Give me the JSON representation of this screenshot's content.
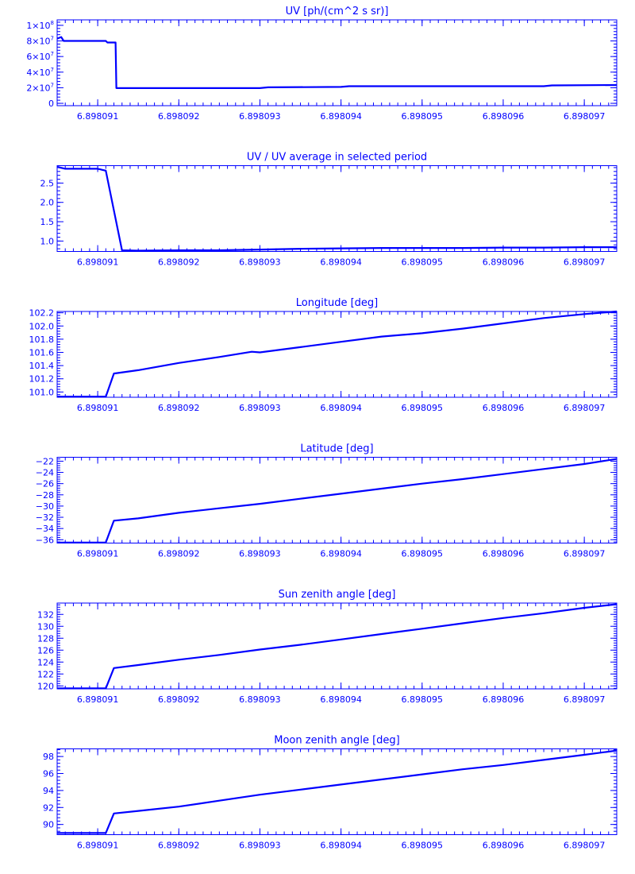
{
  "color": "#0000ff",
  "chart_data": [
    {
      "type": "line",
      "title": "UV [ph/(cm^2 s sr)]",
      "xlabel": "",
      "ylabel": "",
      "x_ticks": [
        "6.898091",
        "6.898092",
        "6.898093",
        "6.898094",
        "6.898095",
        "6.898096",
        "6.898097"
      ],
      "y_ticks": [
        {
          "value": 0,
          "label": "0"
        },
        {
          "value": 20000000,
          "label": "2×10",
          "exp": "7"
        },
        {
          "value": 40000000,
          "label": "4×10",
          "exp": "7"
        },
        {
          "value": 60000000,
          "label": "6×10",
          "exp": "7"
        },
        {
          "value": 80000000,
          "label": "8×10",
          "exp": "7"
        },
        {
          "value": 100000000,
          "label": "1×10",
          "exp": "8"
        }
      ],
      "xlim": [
        6.8980905,
        6.8980974
      ],
      "ylim": [
        -3000000,
        107000000
      ],
      "grid": false,
      "series": [
        {
          "x": [
            6.8980905,
            6.89809055,
            6.89809058,
            6.8980911,
            6.89809112,
            6.89809122,
            6.89809123,
            6.898093,
            6.8980931,
            6.898094,
            6.8980941,
            6.8980965,
            6.8980966,
            6.8980974
          ],
          "y": [
            83000000,
            85000000,
            80000000,
            80000000,
            78000000,
            78000000,
            19500000,
            19500000,
            20500000,
            21000000,
            22000000,
            22000000,
            23000000,
            23500000
          ]
        }
      ]
    },
    {
      "type": "line",
      "title": "UV / UV average in selected period",
      "xlabel": "",
      "ylabel": "",
      "x_ticks": [
        "6.898091",
        "6.898092",
        "6.898093",
        "6.898094",
        "6.898095",
        "6.898096",
        "6.898097"
      ],
      "y_ticks": [
        {
          "value": 1.0,
          "label": "1.0"
        },
        {
          "value": 1.5,
          "label": "1.5"
        },
        {
          "value": 2.0,
          "label": "2.0"
        },
        {
          "value": 2.5,
          "label": "2.5"
        }
      ],
      "xlim": [
        6.8980905,
        6.8980974
      ],
      "ylim": [
        0.73,
        2.95
      ],
      "grid": false,
      "series": [
        {
          "x": [
            6.8980905,
            6.8980906,
            6.898091,
            6.8980911,
            6.8980913,
            6.8980915,
            6.898092,
            6.8980925,
            6.898093,
            6.8980935,
            6.898094,
            6.8980945,
            6.898095,
            6.8980955,
            6.898096,
            6.8980965,
            6.898097,
            6.8980974
          ],
          "y": [
            2.92,
            2.87,
            2.87,
            2.82,
            0.76,
            0.75,
            0.76,
            0.76,
            0.78,
            0.8,
            0.81,
            0.82,
            0.82,
            0.82,
            0.83,
            0.83,
            0.84,
            0.84
          ]
        }
      ]
    },
    {
      "type": "line",
      "title": "Longitude [deg]",
      "xlabel": "",
      "ylabel": "",
      "x_ticks": [
        "6.898091",
        "6.898092",
        "6.898093",
        "6.898094",
        "6.898095",
        "6.898096",
        "6.898097"
      ],
      "y_ticks": [
        {
          "value": 101.0,
          "label": "101.0"
        },
        {
          "value": 101.2,
          "label": "101.2"
        },
        {
          "value": 101.4,
          "label": "101.4"
        },
        {
          "value": 101.6,
          "label": "101.6"
        },
        {
          "value": 101.8,
          "label": "101.8"
        },
        {
          "value": 102.0,
          "label": "102.0"
        },
        {
          "value": 102.2,
          "label": "102.2"
        }
      ],
      "xlim": [
        6.8980905,
        6.8980974
      ],
      "ylim": [
        100.92,
        102.22
      ],
      "grid": false,
      "series": [
        {
          "x": [
            6.8980905,
            6.8980911,
            6.8980912,
            6.8980915,
            6.898092,
            6.8980925,
            6.8980929,
            6.898093,
            6.8980935,
            6.898094,
            6.8980945,
            6.898095,
            6.8980955,
            6.898096,
            6.8980965,
            6.898097,
            6.8980974
          ],
          "y": [
            100.93,
            100.93,
            101.28,
            101.33,
            101.44,
            101.53,
            101.61,
            101.6,
            101.68,
            101.76,
            101.84,
            101.89,
            101.96,
            102.04,
            102.12,
            102.18,
            102.22
          ]
        }
      ]
    },
    {
      "type": "line",
      "title": "Latitude [deg]",
      "xlabel": "",
      "ylabel": "",
      "x_ticks": [
        "6.898091",
        "6.898092",
        "6.898093",
        "6.898094",
        "6.898095",
        "6.898096",
        "6.898097"
      ],
      "y_ticks": [
        {
          "value": -36,
          "label": "−36"
        },
        {
          "value": -34,
          "label": "−34"
        },
        {
          "value": -32,
          "label": "−32"
        },
        {
          "value": -30,
          "label": "−30"
        },
        {
          "value": -28,
          "label": "−28"
        },
        {
          "value": -26,
          "label": "−26"
        },
        {
          "value": -24,
          "label": "−24"
        },
        {
          "value": -22,
          "label": "−22"
        }
      ],
      "xlim": [
        6.8980905,
        6.8980974
      ],
      "ylim": [
        -36.6,
        -21.3
      ],
      "grid": false,
      "series": [
        {
          "x": [
            6.8980905,
            6.8980911,
            6.8980912,
            6.8980915,
            6.898092,
            6.8980925,
            6.898093,
            6.8980935,
            6.898094,
            6.8980945,
            6.898095,
            6.8980955,
            6.898096,
            6.8980965,
            6.898097,
            6.8980974
          ],
          "y": [
            -36.5,
            -36.5,
            -32.6,
            -32.2,
            -31.2,
            -30.4,
            -29.6,
            -28.7,
            -27.8,
            -26.9,
            -26.0,
            -25.2,
            -24.3,
            -23.4,
            -22.5,
            -21.6
          ]
        }
      ]
    },
    {
      "type": "line",
      "title": "Sun zenith angle [deg]",
      "xlabel": "",
      "ylabel": "",
      "x_ticks": [
        "6.898091",
        "6.898092",
        "6.898093",
        "6.898094",
        "6.898095",
        "6.898096",
        "6.898097"
      ],
      "y_ticks": [
        {
          "value": 120,
          "label": "120"
        },
        {
          "value": 122,
          "label": "122"
        },
        {
          "value": 124,
          "label": "124"
        },
        {
          "value": 126,
          "label": "126"
        },
        {
          "value": 128,
          "label": "128"
        },
        {
          "value": 130,
          "label": "130"
        },
        {
          "value": 132,
          "label": "132"
        }
      ],
      "xlim": [
        6.8980905,
        6.8980974
      ],
      "ylim": [
        119.5,
        133.9
      ],
      "grid": false,
      "series": [
        {
          "x": [
            6.8980905,
            6.8980911,
            6.8980912,
            6.8980915,
            6.898092,
            6.8980925,
            6.898093,
            6.8980935,
            6.898094,
            6.8980945,
            6.898095,
            6.8980955,
            6.898096,
            6.8980965,
            6.898097,
            6.8980974
          ],
          "y": [
            119.6,
            119.6,
            123.0,
            123.5,
            124.4,
            125.2,
            126.1,
            126.9,
            127.8,
            128.7,
            129.6,
            130.5,
            131.4,
            132.2,
            133.1,
            133.7
          ]
        }
      ]
    },
    {
      "type": "line",
      "title": "Moon zenith angle [deg]",
      "xlabel": "",
      "ylabel": "",
      "x_ticks": [
        "6.898091",
        "6.898092",
        "6.898093",
        "6.898094",
        "6.898095",
        "6.898096",
        "6.898097"
      ],
      "y_ticks": [
        {
          "value": 90,
          "label": "90"
        },
        {
          "value": 92,
          "label": "92"
        },
        {
          "value": 94,
          "label": "94"
        },
        {
          "value": 96,
          "label": "96"
        },
        {
          "value": 98,
          "label": "98"
        }
      ],
      "xlim": [
        6.8980905,
        6.8980974
      ],
      "ylim": [
        88.8,
        98.9
      ],
      "grid": false,
      "series": [
        {
          "x": [
            6.8980905,
            6.8980911,
            6.8980912,
            6.8980915,
            6.898092,
            6.8980925,
            6.898093,
            6.8980935,
            6.898094,
            6.8980945,
            6.898095,
            6.8980955,
            6.898096,
            6.8980965,
            6.898097,
            6.8980974
          ],
          "y": [
            89.0,
            89.0,
            91.3,
            91.6,
            92.1,
            92.8,
            93.5,
            94.1,
            94.7,
            95.3,
            95.9,
            96.5,
            97.0,
            97.6,
            98.2,
            98.7
          ]
        }
      ]
    }
  ]
}
